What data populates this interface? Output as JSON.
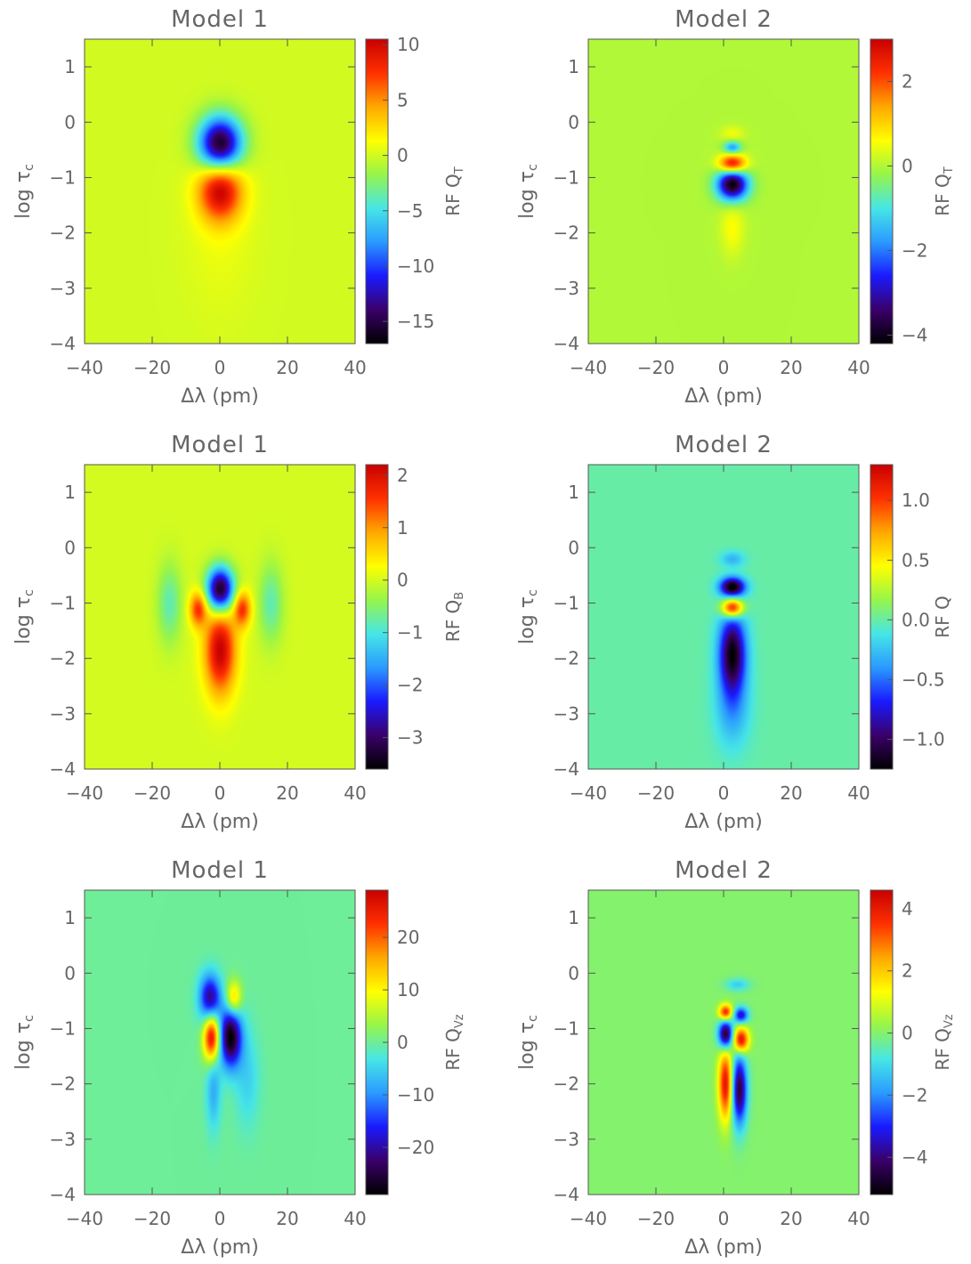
{
  "figure": {
    "colormap": [
      "#000000",
      "#3a006a",
      "#1a1aff",
      "#2a9aff",
      "#46e6e6",
      "#96f54a",
      "#ffff00",
      "#ffa800",
      "#ff3000",
      "#c80000"
    ],
    "background_color_model1": "#9cf044",
    "background_color_model2_mid": "#8ef07a"
  },
  "chart_data": [
    {
      "type": "heatmap",
      "row": "QT",
      "title": "Model 1",
      "xlabel": "Δλ (pm)",
      "ylabel": "log τ_c",
      "colorbar_label": "RF Q_T",
      "xlim": [
        -40,
        40
      ],
      "ylim": [
        -4,
        1.5
      ],
      "xticks": [
        "−40",
        "−20",
        "0",
        "20",
        "40"
      ],
      "yticks": [
        "1",
        "0",
        "−1",
        "−2",
        "−3",
        "−4"
      ],
      "cbar_range": [
        -17,
        10.5
      ],
      "cbar_ticks": [
        10,
        5,
        0,
        -5,
        -10,
        -15
      ],
      "cbar_tick_labels": [
        "10",
        "5",
        "0",
        "−5",
        "−10",
        "−15"
      ],
      "background": 0,
      "features": [
        {
          "x": 0,
          "y": -0.4,
          "sx": 4.5,
          "sy": 0.35,
          "amp": -17
        },
        {
          "x": 0,
          "y": -1.2,
          "sx": 4.5,
          "sy": 0.4,
          "amp": 10.5
        },
        {
          "x": 0,
          "y": -2.0,
          "sx": 7,
          "sy": 1.0,
          "amp": 0.8
        }
      ]
    },
    {
      "type": "heatmap",
      "row": "QT",
      "title": "Model 2",
      "xlabel": "Δλ (pm)",
      "ylabel": "log τ_c",
      "colorbar_label": "RF Q_T",
      "xlim": [
        -40,
        40
      ],
      "ylim": [
        -4,
        1.5
      ],
      "xticks": [
        "−40",
        "−20",
        "0",
        "20",
        "40"
      ],
      "yticks": [
        "1",
        "0",
        "−1",
        "−2",
        "−3",
        "−4"
      ],
      "cbar_range": [
        -4.2,
        3
      ],
      "cbar_ticks": [
        2,
        0,
        -2,
        -4
      ],
      "cbar_tick_labels": [
        "2",
        "0",
        "−2",
        "−4"
      ],
      "background": 0,
      "features": [
        {
          "x": 2.5,
          "y": -0.45,
          "sx": 1.8,
          "sy": 0.08,
          "amp": -1.8
        },
        {
          "x": 2.5,
          "y": -0.75,
          "sx": 2.8,
          "sy": 0.12,
          "amp": 3
        },
        {
          "x": 2.5,
          "y": -1.12,
          "sx": 3.2,
          "sy": 0.2,
          "amp": -4.2
        },
        {
          "x": 2.5,
          "y": -1.9,
          "sx": 2.5,
          "sy": 0.35,
          "amp": 0.6
        },
        {
          "x": 2.5,
          "y": -0.2,
          "sx": 2.5,
          "sy": 0.1,
          "amp": 0.5
        }
      ]
    },
    {
      "type": "heatmap",
      "row": "QB",
      "title": "Model 1",
      "xlabel": "Δλ (pm)",
      "ylabel": "log τ_c",
      "colorbar_label": "RF Q_B",
      "xlim": [
        -40,
        40
      ],
      "ylim": [
        -4,
        1.5
      ],
      "xticks": [
        "−40",
        "−20",
        "0",
        "20",
        "40"
      ],
      "yticks": [
        "1",
        "0",
        "−1",
        "−2",
        "−3",
        "−4"
      ],
      "cbar_range": [
        -3.6,
        2.2
      ],
      "cbar_ticks": [
        2,
        1,
        0,
        -1,
        -2,
        -3
      ],
      "cbar_tick_labels": [
        "2",
        "1",
        "0",
        "−1",
        "−2",
        "−3"
      ],
      "background": 0,
      "features": [
        {
          "x": 0,
          "y": -0.75,
          "sx": 2.8,
          "sy": 0.28,
          "amp": -3.6
        },
        {
          "x": -6.5,
          "y": -1.1,
          "sx": 1.8,
          "sy": 0.22,
          "amp": 1.6
        },
        {
          "x": 6.5,
          "y": -1.1,
          "sx": 1.8,
          "sy": 0.22,
          "amp": 1.6
        },
        {
          "x": 0,
          "y": -1.85,
          "sx": 3.2,
          "sy": 0.55,
          "amp": 2.2
        },
        {
          "x": -15,
          "y": -1.0,
          "sx": 2.5,
          "sy": 0.5,
          "amp": -0.8
        },
        {
          "x": 15,
          "y": -1.0,
          "sx": 2.5,
          "sy": 0.5,
          "amp": -0.8
        }
      ]
    },
    {
      "type": "heatmap",
      "row": "QB",
      "title": "Model 2",
      "xlabel": "Δλ (pm)",
      "ylabel": "log τ_c",
      "colorbar_label": "RF Q",
      "xlim": [
        -40,
        40
      ],
      "ylim": [
        -4,
        1.5
      ],
      "xticks": [
        "−40",
        "−20",
        "0",
        "20",
        "40"
      ],
      "yticks": [
        "1",
        "0",
        "−1",
        "−2",
        "−3",
        "−4"
      ],
      "cbar_range": [
        -1.25,
        1.3
      ],
      "cbar_ticks": [
        1.0,
        0.5,
        0.0,
        -0.5,
        -1.0
      ],
      "cbar_tick_labels": [
        "1.0",
        "0.5",
        "0.0",
        "−0.5",
        "−1.0"
      ],
      "background": 0,
      "features": [
        {
          "x": 2.5,
          "y": -0.7,
          "sx": 2.6,
          "sy": 0.12,
          "amp": -1.25
        },
        {
          "x": 2.5,
          "y": -1.08,
          "sx": 2.2,
          "sy": 0.12,
          "amp": 1.3
        },
        {
          "x": 2.5,
          "y": -1.9,
          "sx": 2.8,
          "sy": 0.5,
          "amp": -1.2
        },
        {
          "x": 2.5,
          "y": -2.9,
          "sx": 3.5,
          "sy": 0.5,
          "amp": -0.35
        },
        {
          "x": 2.5,
          "y": -0.2,
          "sx": 2.5,
          "sy": 0.1,
          "amp": -0.3
        }
      ]
    },
    {
      "type": "heatmap",
      "row": "QVz",
      "title": "Model 1",
      "xlabel": "Δλ (pm)",
      "ylabel": "log τ_c",
      "colorbar_label": "RF Q_Vz",
      "xlim": [
        -40,
        40
      ],
      "ylim": [
        -4,
        1.5
      ],
      "xticks": [
        "−40",
        "−20",
        "0",
        "20",
        "40"
      ],
      "yticks": [
        "1",
        "0",
        "−1",
        "−2",
        "−3",
        "−4"
      ],
      "cbar_range": [
        -29,
        29
      ],
      "cbar_ticks": [
        20,
        10,
        0,
        -10,
        -20
      ],
      "cbar_tick_labels": [
        "20",
        "10",
        "0",
        "−10",
        "−20"
      ],
      "background": 0,
      "features": [
        {
          "x": -3,
          "y": -0.45,
          "sx": 2.2,
          "sy": 0.3,
          "amp": -22
        },
        {
          "x": 4,
          "y": -0.45,
          "sx": 1.6,
          "sy": 0.22,
          "amp": 15
        },
        {
          "x": -2.5,
          "y": -1.15,
          "sx": 1.7,
          "sy": 0.3,
          "amp": 29
        },
        {
          "x": 3,
          "y": -1.15,
          "sx": 2.3,
          "sy": 0.38,
          "amp": -29
        },
        {
          "x": -2,
          "y": -2.1,
          "sx": 1.5,
          "sy": 0.5,
          "amp": -8
        },
        {
          "x": 8,
          "y": -1.9,
          "sx": 2.5,
          "sy": 0.6,
          "amp": -5
        }
      ]
    },
    {
      "type": "heatmap",
      "row": "QVz",
      "title": "Model 2",
      "xlabel": "Δλ (pm)",
      "ylabel": "log τ_c",
      "colorbar_label": "RF Q_Vz",
      "xlim": [
        -40,
        40
      ],
      "ylim": [
        -4,
        1.5
      ],
      "xticks": [
        "−40",
        "−20",
        "0",
        "20",
        "40"
      ],
      "yticks": [
        "1",
        "0",
        "−1",
        "−2",
        "−3",
        "−4"
      ],
      "cbar_range": [
        -5.2,
        4.6
      ],
      "cbar_ticks": [
        4,
        2,
        0,
        -2,
        -4
      ],
      "cbar_tick_labels": [
        "4",
        "2",
        "0",
        "−2",
        "−4"
      ],
      "background": 0,
      "features": [
        {
          "x": 0.5,
          "y": -0.7,
          "sx": 1.4,
          "sy": 0.1,
          "amp": 4
        },
        {
          "x": 5,
          "y": -0.75,
          "sx": 1.5,
          "sy": 0.1,
          "amp": -3.5
        },
        {
          "x": 0.5,
          "y": -1.1,
          "sx": 1.5,
          "sy": 0.18,
          "amp": -5.2
        },
        {
          "x": 5,
          "y": -1.2,
          "sx": 1.6,
          "sy": 0.16,
          "amp": 4.6
        },
        {
          "x": 0.5,
          "y": -2.0,
          "sx": 1.5,
          "sy": 0.45,
          "amp": 4.2
        },
        {
          "x": 4.5,
          "y": -2.1,
          "sx": 1.6,
          "sy": 0.45,
          "amp": -4.6
        },
        {
          "x": 4,
          "y": -0.2,
          "sx": 2.5,
          "sy": 0.08,
          "amp": -1.2
        }
      ]
    }
  ]
}
